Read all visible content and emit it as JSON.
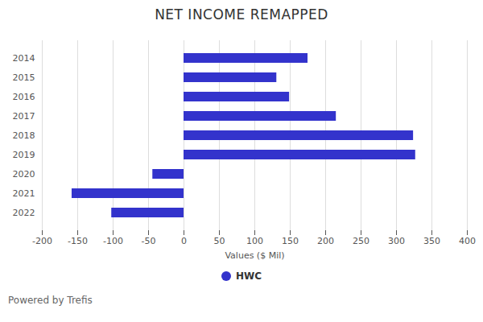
{
  "chart_data": {
    "type": "bar",
    "orientation": "horizontal",
    "title": "NET INCOME REMAPPED",
    "x_label": "Values ($ Mil)",
    "caption": "Powered by Trefis",
    "categories": [
      "2014",
      "2015",
      "2016",
      "2017",
      "2018",
      "2019",
      "2020",
      "2021",
      "2022"
    ],
    "series": [
      {
        "name": "HWC",
        "color": "#3333cc",
        "values": [
          175,
          131,
          149,
          215,
          324,
          327,
          -44,
          -158,
          -102
        ]
      }
    ],
    "xlim": [
      -200,
      400
    ],
    "xticks": [
      -200,
      -150,
      -100,
      -50,
      0,
      50,
      100,
      150,
      200,
      250,
      300,
      350,
      400
    ],
    "grid": true,
    "legend": "bottom"
  }
}
